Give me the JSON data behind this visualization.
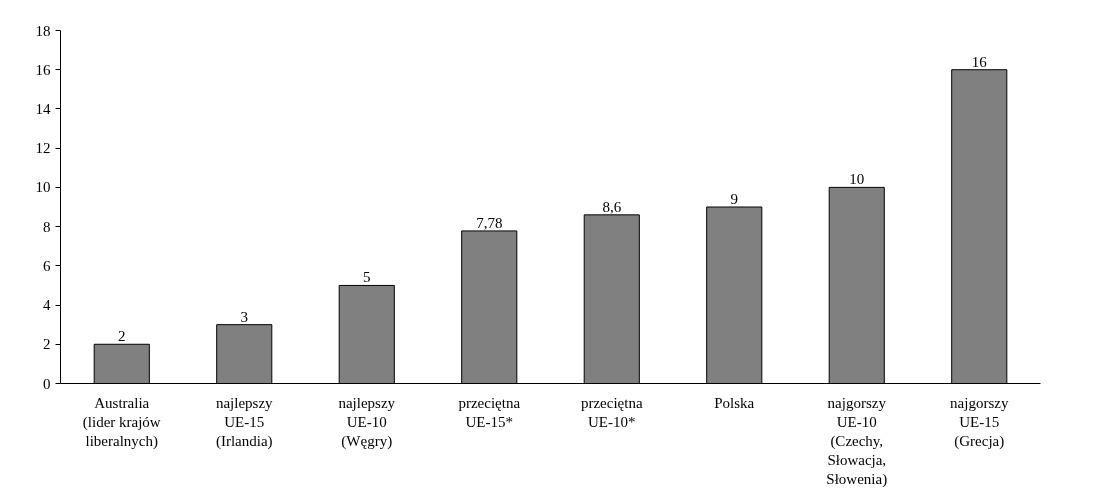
{
  "chart_data": {
    "type": "bar",
    "categories": [
      "Australia\n(lider krajów\nliberalnych)",
      "najlepszy\nUE-15\n(Irlandia)",
      "najlepszy\nUE-10\n(Węgry)",
      "przeciętna\nUE-15*",
      "przeciętna\nUE-10*",
      "Polska",
      "najgorszy\nUE-10\n(Czechy,\nSłowacja,\nSłowenia)",
      "najgorszy\nUE-15\n(Grecja)"
    ],
    "values": [
      2,
      3,
      5,
      7.78,
      8.6,
      9,
      10,
      16
    ],
    "value_labels": [
      "2",
      "3",
      "5",
      "7,78",
      "8,6",
      "9",
      "10",
      "16"
    ],
    "color": "#808080",
    "ylim": [
      0,
      18
    ],
    "yticks": [
      0,
      2,
      4,
      6,
      8,
      10,
      12,
      14,
      16,
      18
    ],
    "grid": false
  }
}
